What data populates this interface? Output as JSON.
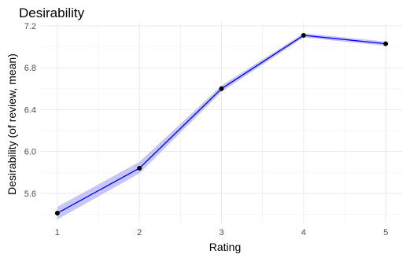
{
  "chart_data": {
    "type": "line",
    "title": "Desirability",
    "xlabel": "Rating",
    "ylabel": "Desirability (of review, mean)",
    "x": [
      1,
      2,
      3,
      4,
      5
    ],
    "x_ticks": [
      "1",
      "2",
      "3",
      "4",
      "5"
    ],
    "y_ticks": [
      "5.6",
      "6.0",
      "6.4",
      "6.8",
      "7.2"
    ],
    "xlim": [
      0.8,
      5.2
    ],
    "ylim": [
      5.32,
      7.23
    ],
    "series": [
      {
        "values": [
          5.41,
          5.84,
          6.6,
          7.11,
          7.03
        ],
        "ci_lower": [
          5.35,
          5.79,
          6.57,
          7.09,
          7.01
        ],
        "ci_upper": [
          5.47,
          5.9,
          6.63,
          7.13,
          7.05
        ]
      }
    ],
    "colors": {
      "line": "#0000ff",
      "ribbon": "#b3b3f5",
      "point": "#000000"
    },
    "grid": true,
    "legend": "none"
  }
}
